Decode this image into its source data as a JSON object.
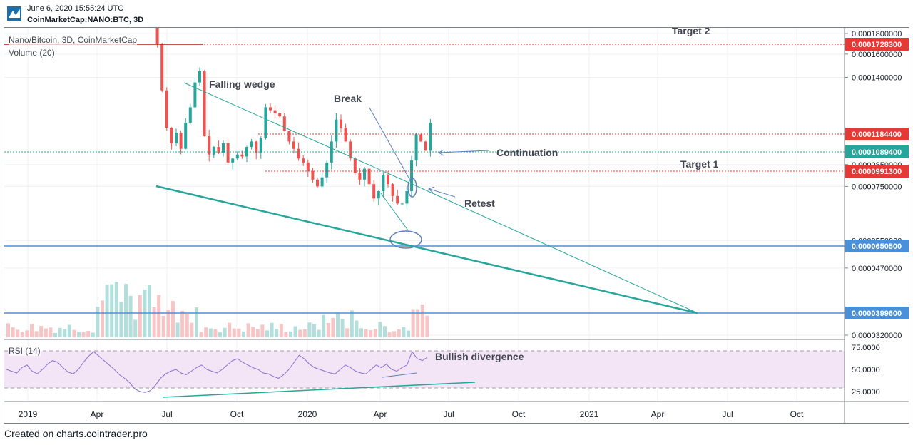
{
  "header": {
    "timestamp": "June 6, 2020 15:55:24 UTC",
    "symbol_line": "CoinMarketCap:NANO:BTC, 3D"
  },
  "legend": {
    "title": "Nano/Bitcoin, 3D, CoinMarketCap",
    "volume": "Volume (20)",
    "rsi": "RSI (14)"
  },
  "footer": {
    "text": "Created on charts.cointrader.pro"
  },
  "colors": {
    "up": "#26a69a",
    "down": "#ef5350",
    "vol_up": "#b2dfdb",
    "vol_down": "#f7c5c5",
    "trend": "#26a69a",
    "hline_blue": "#4a90d9",
    "hline_red": "#e53935",
    "rsi": "#8e6fcf",
    "rsi_band": "#f3e5f5",
    "annot": "#5c7fbf"
  },
  "chart_data": {
    "type": "candlestick",
    "title": "Nano/Bitcoin, 3D, CoinMarketCap",
    "price_axis": {
      "ticks": [
        "0.0001800000",
        "0.0001600000",
        "0.0001400000",
        "0.0000850000",
        "0.0000750000",
        "0.0000550000",
        "0.0000470000",
        "0.0000320000"
      ],
      "scale": "log"
    },
    "price_labels": [
      {
        "value": "0.0001728300",
        "color": "#e53935"
      },
      {
        "value": "0.0001184400",
        "color": "#e53935"
      },
      {
        "value": "0.0001089400",
        "color": "#26a69a"
      },
      {
        "value": "0.0000991300",
        "color": "#e53935"
      },
      {
        "value": "0.0000650500",
        "color": "#4a90d9"
      },
      {
        "value": "0.0000399600",
        "color": "#4a90d9"
      }
    ],
    "time_axis": [
      "2019",
      "Apr",
      "Jul",
      "Oct",
      "2020",
      "Apr",
      "Jul",
      "Oct",
      "2021",
      "Apr",
      "Jul",
      "Oct"
    ],
    "rsi_axis": [
      "75.0000",
      "50.0000",
      "25.0000"
    ],
    "annotations": {
      "target2": "Target 2",
      "falling_wedge": "Falling wedge",
      "break": "Break",
      "continuation": "Continuation",
      "target1": "Target 1",
      "retest": "Retest",
      "bullish_divergence": "Bullish divergence"
    },
    "price_path": [
      0.00022,
      0.00017,
      0.00013,
      0.000105,
      9.6e-05,
      0.000102,
      9.3e-05,
      0.000108,
      0.000118,
      0.000136,
      0.000145,
      0.0001,
      9e-05,
      9.4e-05,
      9.1e-05,
      9.6e-05,
      8.6e-05,
      8.8e-05,
      9e-05,
      8.9e-05,
      9.4e-05,
      9.7e-05,
      9.1e-05,
      9.9e-05,
      0.000118,
      0.000116,
      0.000114,
      0.000112,
      0.000103,
      9.7e-05,
      9.3e-05,
      8.8e-05,
      8.6e-05,
      8.2e-05,
      7.8e-05,
      7.5e-05,
      7.9e-05,
      8.6e-05,
      9.7e-05,
      0.00011,
      0.000105,
      9.7e-05,
      8.8e-05,
      8.1e-05,
      7.8e-05,
      8.3e-05,
      7.6e-05,
      7e-05,
      7.3e-05,
      8e-05,
      7.6e-05,
      7.1e-05,
      6.8e-05,
      6.8e-05,
      7.3e-05,
      8.7e-05,
      0.000101,
      9.7e-05,
      9.2e-05,
      0.000108
    ]
  }
}
